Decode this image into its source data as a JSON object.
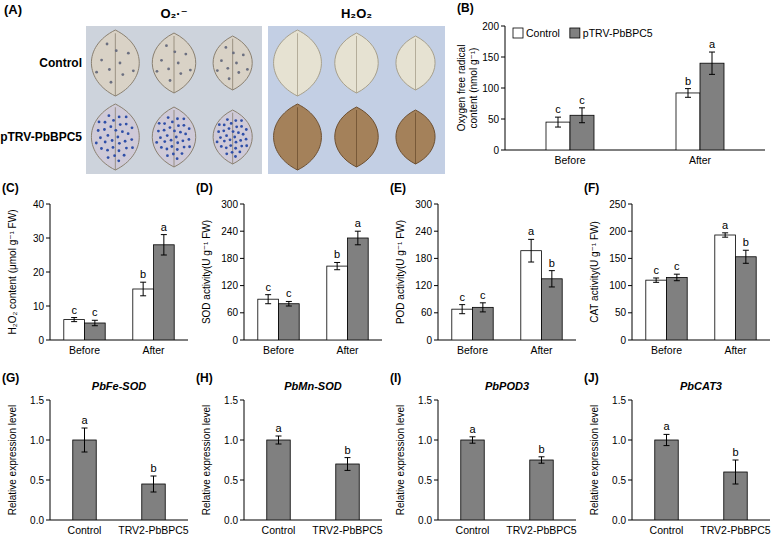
{
  "panel_a": {
    "label": "(A)",
    "columns": [
      "O₂·⁻",
      "H₂O₂"
    ],
    "rows": [
      "Control",
      "pTRV-PbBPC5"
    ]
  },
  "chart_data": [
    {
      "type": "bar",
      "panel": "(B)",
      "ylabel": "Oxygen free radical content (nmol g⁻¹)",
      "categories": [
        "Before",
        "After"
      ],
      "series": [
        {
          "name": "Control",
          "color": "#ffffff",
          "values": [
            45,
            92
          ],
          "errors": [
            8,
            7
          ],
          "letters": [
            "c",
            "b"
          ]
        },
        {
          "name": "pTRV-PbBPC5",
          "color": "#808080",
          "values": [
            56,
            140
          ],
          "errors": [
            12,
            18
          ],
          "letters": [
            "c",
            "a"
          ]
        }
      ],
      "ylim": [
        0,
        200
      ],
      "yticks": [
        0,
        50,
        100,
        150,
        200
      ],
      "legend": "top-left"
    },
    {
      "type": "bar",
      "panel": "(C)",
      "ylabel": "H₂O₂ content (μmol g⁻¹ FW)",
      "categories": [
        "Before",
        "After"
      ],
      "series": [
        {
          "color": "#ffffff",
          "values": [
            6,
            15
          ],
          "errors": [
            0.6,
            2
          ],
          "letters": [
            "c",
            "b"
          ]
        },
        {
          "color": "#808080",
          "values": [
            5,
            28
          ],
          "errors": [
            0.8,
            3
          ],
          "letters": [
            "c",
            "a"
          ]
        }
      ],
      "ylim": [
        0,
        40
      ],
      "yticks": [
        0,
        10,
        20,
        30,
        40
      ]
    },
    {
      "type": "bar",
      "panel": "(D)",
      "ylabel": "SOD activity(U g⁻¹ FW)",
      "categories": [
        "Before",
        "After"
      ],
      "series": [
        {
          "color": "#ffffff",
          "values": [
            90,
            163
          ],
          "errors": [
            10,
            8
          ],
          "letters": [
            "c",
            "b"
          ]
        },
        {
          "color": "#808080",
          "values": [
            80,
            225
          ],
          "errors": [
            5,
            15
          ],
          "letters": [
            "c",
            "a"
          ]
        }
      ],
      "ylim": [
        0,
        300
      ],
      "yticks": [
        0,
        60,
        120,
        180,
        240,
        300
      ]
    },
    {
      "type": "bar",
      "panel": "(E)",
      "ylabel": "POD activity(U g⁻¹ FW)",
      "categories": [
        "Before",
        "After"
      ],
      "series": [
        {
          "color": "#ffffff",
          "values": [
            68,
            197
          ],
          "errors": [
            10,
            25
          ],
          "letters": [
            "c",
            "a"
          ]
        },
        {
          "color": "#808080",
          "values": [
            72,
            135
          ],
          "errors": [
            10,
            18
          ],
          "letters": [
            "c",
            "b"
          ]
        }
      ],
      "ylim": [
        0,
        300
      ],
      "yticks": [
        0,
        60,
        120,
        180,
        240,
        300
      ]
    },
    {
      "type": "bar",
      "panel": "(F)",
      "ylabel": "CAT activity(U g⁻¹ FW)",
      "categories": [
        "Before",
        "After"
      ],
      "series": [
        {
          "color": "#ffffff",
          "values": [
            110,
            193
          ],
          "errors": [
            4,
            4
          ],
          "letters": [
            "c",
            "a"
          ]
        },
        {
          "color": "#808080",
          "values": [
            115,
            153
          ],
          "errors": [
            6,
            12
          ],
          "letters": [
            "c",
            "b"
          ]
        }
      ],
      "ylim": [
        0,
        250
      ],
      "yticks": [
        0,
        50,
        100,
        150,
        200,
        250
      ]
    },
    {
      "type": "bar",
      "panel": "(G)",
      "title": "PbFe-SOD",
      "ylabel": "Relative expression level",
      "categories": [
        "Control",
        "TRV2-PbBPC5"
      ],
      "values": [
        1.0,
        0.45
      ],
      "errors": [
        0.15,
        0.1
      ],
      "letters": [
        "a",
        "b"
      ],
      "color": "#808080",
      "ylim": [
        0,
        1.5
      ],
      "yticks": [
        {
          "value": 0,
          "label": "0.0"
        },
        {
          "value": 0.5,
          "label": "0.5"
        },
        {
          "value": 1,
          "label": "1.0"
        },
        {
          "value": 1.5,
          "label": "1.5"
        }
      ]
    },
    {
      "type": "bar",
      "panel": "(H)",
      "title": "PbMn-SOD",
      "ylabel": "Relative expression level",
      "categories": [
        "Control",
        "TRV2-PbBPC5"
      ],
      "values": [
        1.0,
        0.7
      ],
      "errors": [
        0.05,
        0.08
      ],
      "letters": [
        "a",
        "b"
      ],
      "color": "#808080",
      "ylim": [
        0,
        1.5
      ],
      "yticks": [
        {
          "value": 0,
          "label": "0.0"
        },
        {
          "value": 0.5,
          "label": "0.5"
        },
        {
          "value": 1,
          "label": "1.0"
        },
        {
          "value": 1.5,
          "label": "1.5"
        }
      ]
    },
    {
      "type": "bar",
      "panel": "(I)",
      "title": "PbPOD3",
      "ylabel": "Relative expression level",
      "categories": [
        "Control",
        "TRV2-PbBPC5"
      ],
      "values": [
        1.0,
        0.75
      ],
      "errors": [
        0.04,
        0.04
      ],
      "letters": [
        "a",
        "b"
      ],
      "color": "#808080",
      "ylim": [
        0,
        1.5
      ],
      "yticks": [
        {
          "value": 0,
          "label": "0.0"
        },
        {
          "value": 0.5,
          "label": "0.5"
        },
        {
          "value": 1,
          "label": "1.0"
        },
        {
          "value": 1.5,
          "label": "1.5"
        }
      ]
    },
    {
      "type": "bar",
      "panel": "(J)",
      "title": "PbCAT3",
      "ylabel": "Relative expression level",
      "categories": [
        "Control",
        "TRV2-PbBPC5"
      ],
      "values": [
        1.0,
        0.6
      ],
      "errors": [
        0.07,
        0.15
      ],
      "letters": [
        "a",
        "b"
      ],
      "color": "#808080",
      "ylim": [
        0,
        1.5
      ],
      "yticks": [
        {
          "value": 0,
          "label": "0.0"
        },
        {
          "value": 0.5,
          "label": "0.5"
        },
        {
          "value": 1,
          "label": "1.0"
        },
        {
          "value": 1.5,
          "label": "1.5"
        }
      ]
    }
  ]
}
